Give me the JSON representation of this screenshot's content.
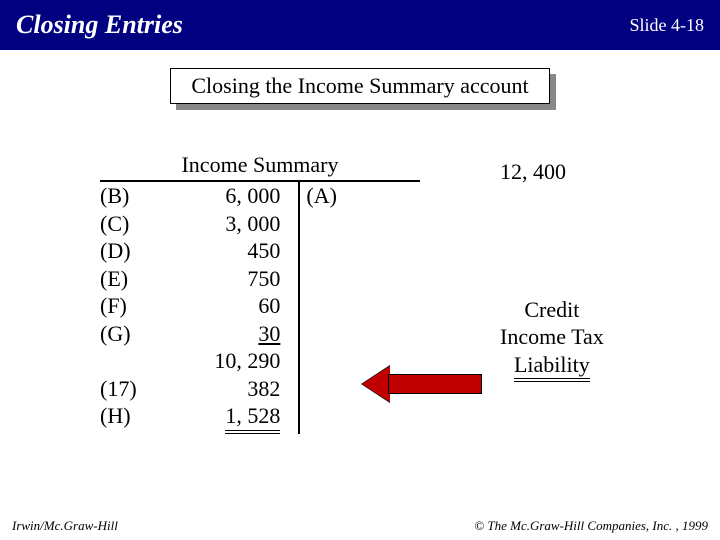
{
  "titlebar": {
    "title": "Closing Entries",
    "slide": "Slide 4-18",
    "bg_color": "#000080",
    "text_color": "#ffffff"
  },
  "subtitle": "Closing the Income Summary account",
  "t_account": {
    "header": "Income Summary",
    "debit_rows": [
      {
        "label": "(B)",
        "value": "6, 000"
      },
      {
        "label": "(C)",
        "value": "3, 000"
      },
      {
        "label": "(D)",
        "value": "450"
      },
      {
        "label": "(E)",
        "value": "750"
      },
      {
        "label": "(F)",
        "value": "60"
      },
      {
        "label": "(G)",
        "value": "30"
      }
    ],
    "debit_subtotal": "10, 290",
    "extra_rows": [
      {
        "label": "(17)",
        "value": "382"
      },
      {
        "label": "(H)",
        "value": "1, 528"
      }
    ],
    "credit_rows": [
      {
        "label": "(A)",
        "value": ""
      }
    ]
  },
  "credit_side": {
    "amount": "12, 400",
    "line1": "Credit",
    "line2": "Income Tax",
    "line3": "Liability"
  },
  "arrow": {
    "fill_color": "#c00000"
  },
  "footer": {
    "left": "Irwin/Mc.Graw-Hill",
    "right": "© The Mc.Graw-Hill Companies, Inc. , 1999"
  }
}
